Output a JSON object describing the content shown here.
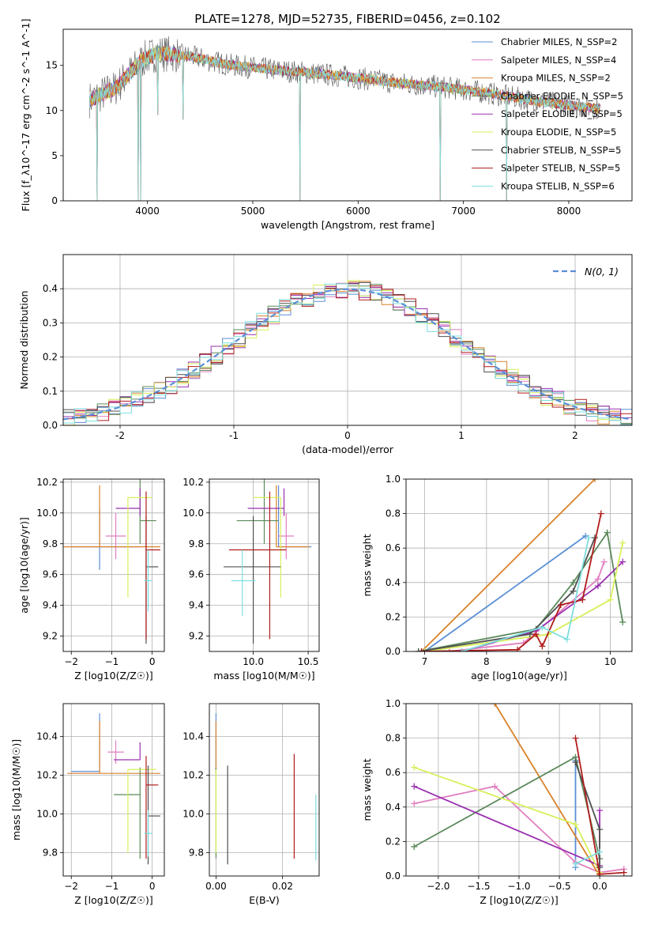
{
  "figure": {
    "title": "PLATE=1278, MJD=52735, FIBERID=0456, z=0.102"
  },
  "colors": {
    "chabrier_miles": "#5b8fd6",
    "salpeter_miles": "#e07fc0",
    "kroupa_miles": "#d9822b",
    "chabrier_elodie": "#5c8a5c",
    "salpeter_elodie": "#9b30b0",
    "kroupa_elodie": "#d8ef5a",
    "chabrier_stelib": "#505050",
    "salpeter_stelib": "#b01c1c",
    "kroupa_stelib": "#7fdede",
    "normal_curve": "#5b8fd6"
  },
  "chart_data": [
    {
      "id": "spectrum",
      "type": "line",
      "title": "PLATE=1278, MJD=52735, FIBERID=0456, z=0.102",
      "xlabel": "wavelength [Angstrom, rest frame]",
      "ylabel": "Flux [f_λ10^-17 erg cm^-2 s^-1 A^-1]",
      "xlim": [
        3200,
        8600
      ],
      "ylim": [
        0,
        19
      ],
      "xticks": [
        4000,
        5000,
        6000,
        7000,
        8000
      ],
      "yticks": [
        0,
        5,
        10,
        15
      ],
      "legend_position": "top-right",
      "series": [
        {
          "name": "Chabrier MILES, N_SSP=2",
          "color": "chabrier_miles"
        },
        {
          "name": "Salpeter MILES, N_SSP=4",
          "color": "salpeter_miles"
        },
        {
          "name": "Kroupa MILES, N_SSP=2",
          "color": "kroupa_miles"
        },
        {
          "name": "Chabrier ELODIE, N_SSP=5",
          "color": "chabrier_elodie"
        },
        {
          "name": "Salpeter ELODIE, N_SSP=5",
          "color": "salpeter_elodie"
        },
        {
          "name": "Kroupa ELODIE, N_SSP=5",
          "color": "kroupa_elodie"
        },
        {
          "name": "Chabrier STELIB, N_SSP=5",
          "color": "chabrier_stelib"
        },
        {
          "name": "Salpeter STELIB, N_SSP=5",
          "color": "salpeter_stelib"
        },
        {
          "name": "Kroupa STELIB, N_SSP=6",
          "color": "kroupa_stelib"
        }
      ],
      "continuum": [
        [
          3450,
          11.2
        ],
        [
          3700,
          12.5
        ],
        [
          3950,
          15.6
        ],
        [
          4100,
          16.4
        ],
        [
          4400,
          16.0
        ],
        [
          4800,
          15.0
        ],
        [
          5200,
          14.5
        ],
        [
          5600,
          14.1
        ],
        [
          6000,
          13.6
        ],
        [
          6400,
          13.0
        ],
        [
          6800,
          12.6
        ],
        [
          7200,
          12.0
        ],
        [
          7600,
          11.2
        ],
        [
          8000,
          10.6
        ],
        [
          8300,
          10.2
        ]
      ],
      "absorption_dips": [
        [
          3520,
          0
        ],
        [
          3910,
          0
        ],
        [
          3935,
          0
        ],
        [
          4100,
          9.5
        ],
        [
          4340,
          9.0
        ],
        [
          5450,
          0
        ],
        [
          6780,
          0
        ],
        [
          7410,
          0
        ]
      ]
    },
    {
      "id": "residuals",
      "type": "line",
      "xlabel": "(data-model)/error",
      "ylabel": "Normed distribution",
      "xlim": [
        -2.5,
        2.5
      ],
      "ylim": [
        0,
        0.5
      ],
      "xticks": [
        -2,
        -1,
        0,
        1,
        2
      ],
      "yticks": [
        0.0,
        0.1,
        0.2,
        0.3,
        0.4
      ],
      "legend_position": "top-right",
      "normal_curve_label": "N(0, 1)"
    },
    {
      "id": "age_vs_Z",
      "type": "scatter",
      "xlabel": "Z [log10(Z/Z☉)]",
      "ylabel": "age [log10(age/yr)]",
      "xlim": [
        -2.2,
        0.3
      ],
      "ylim": [
        9.1,
        10.22
      ],
      "xticks": [
        -2,
        -1,
        0
      ],
      "yticks": [
        9.2,
        9.4,
        9.6,
        9.8,
        10.0,
        10.2
      ],
      "points": [
        {
          "series": "chabrier_miles",
          "x": -1.3,
          "xerr": [
            0.7,
            1.0
          ],
          "y": 9.78,
          "yerr": [
            0.15,
            0.25
          ]
        },
        {
          "series": "salpeter_miles",
          "x": -0.9,
          "xerr": [
            0.25,
            0.25
          ],
          "y": 9.85,
          "yerr": [
            0.15,
            0.15
          ]
        },
        {
          "series": "kroupa_miles",
          "x": -1.3,
          "xerr": [
            0.9,
            1.5
          ],
          "y": 9.78,
          "yerr": [
            0.0,
            0.4
          ]
        },
        {
          "series": "chabrier_elodie",
          "x": -0.3,
          "xerr": [
            0.0,
            0.4
          ],
          "y": 9.95,
          "yerr": [
            0.15,
            0.35
          ]
        },
        {
          "series": "salpeter_elodie",
          "x": -0.3,
          "xerr": [
            0.6,
            0.0
          ],
          "y": 10.03,
          "yerr": [
            0.05,
            0.13
          ]
        },
        {
          "series": "kroupa_elodie",
          "x": -0.6,
          "xerr": [
            0.0,
            0.6
          ],
          "y": 10.1,
          "yerr": [
            0.65,
            0.0
          ]
        },
        {
          "series": "chabrier_stelib",
          "x": -0.15,
          "xerr": [
            0.0,
            0.3
          ],
          "y": 9.65,
          "yerr": [
            0.5,
            0.33
          ]
        },
        {
          "series": "salpeter_stelib",
          "x": -0.15,
          "xerr": [
            0.0,
            0.35
          ],
          "y": 9.76,
          "yerr": [
            0.58,
            0.38
          ]
        },
        {
          "series": "kroupa_stelib",
          "x": -0.1,
          "xerr": [
            0.1,
            0.1
          ],
          "y": 9.56,
          "yerr": [
            0.2,
            0.2
          ]
        }
      ]
    },
    {
      "id": "age_vs_mass",
      "type": "scatter",
      "xlabel": "mass [log10(M/M☉)]",
      "ylabel": "",
      "xlim": [
        9.6,
        10.6
      ],
      "ylim": [
        9.1,
        10.22
      ],
      "xticks": [
        10.0,
        10.5
      ],
      "yticks": [
        9.2,
        9.4,
        9.6,
        9.8,
        10.0,
        10.2
      ],
      "points": [
        {
          "series": "chabrier_miles",
          "x": 10.23,
          "xerr": [
            0.0,
            0.3
          ],
          "y": 9.78,
          "yerr": [
            0.0,
            0.4
          ]
        },
        {
          "series": "salpeter_miles",
          "x": 10.3,
          "xerr": [
            0.07,
            0.07
          ],
          "y": 9.85,
          "yerr": [
            0.15,
            0.15
          ]
        },
        {
          "series": "kroupa_miles",
          "x": 10.21,
          "xerr": [
            0.0,
            0.3
          ],
          "y": 9.78,
          "yerr": [
            0.0,
            0.4
          ]
        },
        {
          "series": "chabrier_elodie",
          "x": 10.1,
          "xerr": [
            0.25,
            0.13
          ],
          "y": 9.95,
          "yerr": [
            0.15,
            0.35
          ]
        },
        {
          "series": "salpeter_elodie",
          "x": 10.28,
          "xerr": [
            0.33,
            0.0
          ],
          "y": 10.03,
          "yerr": [
            0.05,
            0.13
          ]
        },
        {
          "series": "kroupa_elodie",
          "x": 10.25,
          "xerr": [
            0.25,
            0.0
          ],
          "y": 10.1,
          "yerr": [
            0.65,
            0.0
          ]
        },
        {
          "series": "chabrier_stelib",
          "x": 10.0,
          "xerr": [
            0.27,
            0.25
          ],
          "y": 9.65,
          "yerr": [
            0.5,
            0.33
          ]
        },
        {
          "series": "salpeter_stelib",
          "x": 10.15,
          "xerr": [
            0.37,
            0.15
          ],
          "y": 9.76,
          "yerr": [
            0.58,
            0.38
          ]
        },
        {
          "series": "kroupa_stelib",
          "x": 9.9,
          "xerr": [
            0.1,
            0.12
          ],
          "y": 9.56,
          "yerr": [
            0.23,
            0.2
          ]
        }
      ]
    },
    {
      "id": "massweight_vs_age",
      "type": "line",
      "xlabel": "age [log10(age/yr)]",
      "ylabel": "mass weight",
      "xlim": [
        6.7,
        10.35
      ],
      "ylim": [
        0,
        1
      ],
      "xticks": [
        7,
        8,
        9,
        10
      ],
      "yticks": [
        0.0,
        0.2,
        0.4,
        0.6,
        0.8,
        1.0
      ],
      "series": [
        {
          "name": "chabrier_miles",
          "x": [
            7.0,
            9.6
          ],
          "y": [
            0.0,
            0.67
          ]
        },
        {
          "name": "salpeter_miles",
          "x": [
            7.4,
            8.6,
            9.8,
            9.9
          ],
          "y": [
            0.0,
            0.05,
            0.42,
            0.52
          ]
        },
        {
          "name": "kroupa_miles",
          "x": [
            6.95,
            9.75
          ],
          "y": [
            0.0,
            1.0
          ]
        },
        {
          "name": "chabrier_elodie",
          "x": [
            6.9,
            8.8,
            9.4,
            9.95,
            10.2
          ],
          "y": [
            0.0,
            0.13,
            0.4,
            0.69,
            0.17
          ]
        },
        {
          "name": "salpeter_elodie",
          "x": [
            7.6,
            8.8,
            9.8,
            10.2
          ],
          "y": [
            0.0,
            0.12,
            0.38,
            0.52
          ]
        },
        {
          "name": "kroupa_elodie",
          "x": [
            7.0,
            9.0,
            10.0,
            10.2
          ],
          "y": [
            0.0,
            0.1,
            0.3,
            0.63
          ]
        },
        {
          "name": "chabrier_stelib",
          "x": [
            6.9,
            8.7,
            9.4,
            9.75
          ],
          "y": [
            0.0,
            0.1,
            0.35,
            0.66
          ]
        },
        {
          "name": "salpeter_stelib",
          "x": [
            6.95,
            8.5,
            8.8,
            8.9,
            9.2,
            9.55,
            9.85
          ],
          "y": [
            0.0,
            0.01,
            0.1,
            0.03,
            0.27,
            0.3,
            0.8
          ]
        },
        {
          "name": "kroupa_stelib",
          "x": [
            7.6,
            8.9,
            9.3,
            9.65
          ],
          "y": [
            0.0,
            0.14,
            0.07,
            0.66
          ]
        }
      ]
    },
    {
      "id": "mass_vs_Z",
      "type": "scatter",
      "xlabel": "Z [log10(Z/Z☉)]",
      "ylabel": "mass [log10(M/M☉)]",
      "xlim": [
        -2.2,
        0.3
      ],
      "ylim": [
        9.68,
        10.57
      ],
      "xticks": [
        -2,
        -1,
        0
      ],
      "yticks": [
        9.8,
        10.0,
        10.2,
        10.4
      ],
      "points": [
        {
          "series": "chabrier_miles",
          "x": -1.3,
          "xerr": [
            0.7,
            0.0
          ],
          "y": 10.22,
          "yerr": [
            0.0,
            0.3
          ]
        },
        {
          "series": "salpeter_miles",
          "x": -0.9,
          "xerr": [
            0.2,
            0.2
          ],
          "y": 10.32,
          "yerr": [
            0.06,
            0.06
          ]
        },
        {
          "series": "kroupa_miles",
          "x": -1.3,
          "xerr": [
            0.8,
            1.5
          ],
          "y": 10.21,
          "yerr": [
            0.0,
            0.27
          ]
        },
        {
          "series": "chabrier_elodie",
          "x": -0.3,
          "xerr": [
            0.65,
            0.0
          ],
          "y": 10.1,
          "yerr": [
            0.33,
            0.14
          ]
        },
        {
          "series": "salpeter_elodie",
          "x": -0.3,
          "xerr": [
            0.65,
            0.0
          ],
          "y": 10.28,
          "yerr": [
            0.0,
            0.09
          ]
        },
        {
          "series": "kroupa_elodie",
          "x": -0.6,
          "xerr": [
            0.0,
            0.7
          ],
          "y": 10.23,
          "yerr": [
            0.43,
            0.0
          ]
        },
        {
          "series": "chabrier_stelib",
          "x": -0.1,
          "xerr": [
            0.0,
            0.3
          ],
          "y": 9.99,
          "yerr": [
            0.25,
            0.26
          ]
        },
        {
          "series": "salpeter_stelib",
          "x": -0.15,
          "xerr": [
            0.0,
            0.3
          ],
          "y": 10.15,
          "yerr": [
            0.38,
            0.15
          ]
        },
        {
          "series": "kroupa_stelib",
          "x": -0.1,
          "xerr": [
            0.1,
            0.1
          ],
          "y": 9.9,
          "yerr": [
            0.12,
            0.12
          ]
        }
      ]
    },
    {
      "id": "mass_vs_ebv",
      "type": "scatter",
      "xlabel": "E(B-V)",
      "ylabel": "",
      "xlim": [
        -0.002,
        0.031
      ],
      "ylim": [
        9.68,
        10.57
      ],
      "xticks": [
        0.0,
        0.02
      ],
      "yticks": [
        9.8,
        10.0,
        10.2,
        10.4
      ],
      "points": [
        {
          "series": "chabrier_miles",
          "x": 0.0,
          "y": 10.22,
          "yerr": [
            0.0,
            0.3
          ]
        },
        {
          "series": "kroupa_miles",
          "x": 0.0,
          "y": 10.21,
          "yerr": [
            0.0,
            0.27
          ]
        },
        {
          "series": "chabrier_elodie",
          "x": 0.0,
          "y": 10.1,
          "yerr": [
            0.33,
            0.14
          ]
        },
        {
          "series": "kroupa_elodie",
          "x": 0.0,
          "y": 10.23,
          "yerr": [
            0.43,
            0.0
          ]
        },
        {
          "series": "chabrier_stelib",
          "x": 0.0035,
          "y": 9.99,
          "yerr": [
            0.25,
            0.26
          ]
        },
        {
          "series": "salpeter_stelib",
          "x": 0.0235,
          "y": 10.15,
          "yerr": [
            0.38,
            0.16
          ]
        },
        {
          "series": "kroupa_stelib",
          "x": 0.03,
          "y": 9.92,
          "yerr": [
            0.16,
            0.18
          ]
        }
      ]
    },
    {
      "id": "massweight_vs_Z",
      "type": "line",
      "xlabel": "Z [log10(Z/Z☉)]",
      "ylabel": "mass weight",
      "xlim": [
        -2.4,
        0.4
      ],
      "ylim": [
        0,
        1
      ],
      "xticks": [
        -2.0,
        -1.5,
        -1.0,
        -0.5,
        0.0
      ],
      "yticks": [
        0.0,
        0.2,
        0.4,
        0.6,
        0.8,
        1.0
      ],
      "series": [
        {
          "name": "chabrier_miles",
          "x": [
            -0.3,
            -0.3
          ],
          "y": [
            0.05,
            0.67
          ]
        },
        {
          "name": "salpeter_miles",
          "x": [
            -2.3,
            -1.3,
            -0.3,
            0.0,
            0.3
          ],
          "y": [
            0.42,
            0.52,
            0.08,
            0.02,
            0.04
          ]
        },
        {
          "name": "kroupa_miles",
          "x": [
            -1.3,
            0.0
          ],
          "y": [
            1.0,
            0.0
          ]
        },
        {
          "name": "chabrier_elodie",
          "x": [
            -2.3,
            -0.3,
            0.0
          ],
          "y": [
            0.17,
            0.69,
            0.1
          ]
        },
        {
          "name": "salpeter_elodie",
          "x": [
            -2.3,
            0.0,
            0.0
          ],
          "y": [
            0.52,
            0.06,
            0.38
          ]
        },
        {
          "name": "kroupa_elodie",
          "x": [
            -2.3,
            -0.3,
            0.0
          ],
          "y": [
            0.63,
            0.3,
            0.02
          ]
        },
        {
          "name": "chabrier_stelib",
          "x": [
            -0.3,
            0.0,
            0.0
          ],
          "y": [
            0.66,
            0.27,
            0.05
          ]
        },
        {
          "name": "salpeter_stelib",
          "x": [
            -0.3,
            0.0,
            0.3
          ],
          "y": [
            0.8,
            0.01,
            0.02
          ]
        },
        {
          "name": "kroupa_stelib",
          "x": [
            -0.3,
            0.0
          ],
          "y": [
            0.07,
            0.14
          ]
        }
      ]
    }
  ]
}
